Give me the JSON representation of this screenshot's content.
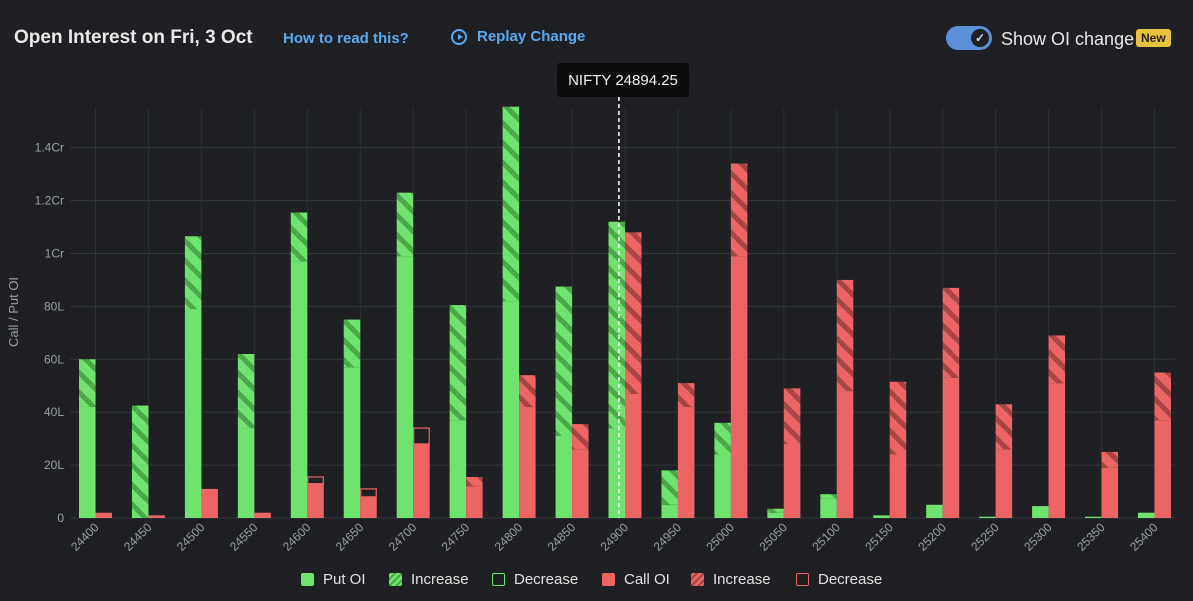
{
  "header": {
    "title": "Open Interest on Fri, 3 Oct",
    "how_to_read": "How to read this?",
    "replay": "Replay Change",
    "toggle_label": "Show OI change",
    "toggle_on": true,
    "badge": "New"
  },
  "tooltip": "NIFTY 24894.25",
  "colors": {
    "background": "#1e2023",
    "put": "#6ee46e",
    "call": "#ec6464",
    "grid": "#34373b",
    "link": "#5aa9f0",
    "badge": "#e8c23a"
  },
  "legend": [
    {
      "label": "Put OI",
      "kind": "solid",
      "side": "put"
    },
    {
      "label": "Increase",
      "kind": "hatch",
      "side": "put"
    },
    {
      "label": "Decrease",
      "kind": "outline",
      "side": "put"
    },
    {
      "label": "Call OI",
      "kind": "solid",
      "side": "call"
    },
    {
      "label": "Increase",
      "kind": "hatch",
      "side": "call"
    },
    {
      "label": "Decrease",
      "kind": "outline",
      "side": "call"
    }
  ],
  "chart_data": {
    "type": "bar",
    "title": "Open Interest on Fri, 3 Oct",
    "xlabel": "",
    "ylabel": "Call / Put OI",
    "ylim": [
      0,
      155
    ],
    "unit": "Lakh",
    "yticks": [
      {
        "value": 0,
        "label": "0"
      },
      {
        "value": 20,
        "label": "20L"
      },
      {
        "value": 40,
        "label": "40L"
      },
      {
        "value": 60,
        "label": "60L"
      },
      {
        "value": 80,
        "label": "80L"
      },
      {
        "value": 100,
        "label": "1Cr"
      },
      {
        "value": 120,
        "label": "1.2Cr"
      },
      {
        "value": 140,
        "label": "1.4Cr"
      }
    ],
    "categories": [
      "24400",
      "24450",
      "24500",
      "24550",
      "24600",
      "24650",
      "24700",
      "24750",
      "24800",
      "24850",
      "24900",
      "24950",
      "25000",
      "25050",
      "25100",
      "25150",
      "25200",
      "25250",
      "25300",
      "25350",
      "25400"
    ],
    "spot": {
      "label": "NIFTY 24894.25",
      "value": 24894.25
    },
    "series": [
      {
        "name": "Put OI",
        "base": [
          42,
          0,
          79,
          34,
          97,
          57,
          99,
          37,
          82,
          31,
          34,
          5,
          24,
          2,
          7.5,
          1,
          5,
          0.5,
          4.5,
          0.5,
          2
        ],
        "increase": [
          18,
          42.5,
          27.5,
          28,
          18.5,
          18,
          24,
          43.5,
          73.5,
          56.5,
          78,
          13,
          12,
          1.5,
          1.5,
          0,
          0,
          0,
          0,
          0,
          0
        ],
        "decrease": [
          0,
          0,
          0,
          0,
          0,
          0,
          0,
          0,
          0,
          0,
          0,
          0,
          0,
          0,
          0,
          0,
          0,
          0,
          0,
          0,
          0
        ]
      },
      {
        "name": "Call OI",
        "base": [
          2,
          1,
          11,
          2,
          13,
          8,
          28,
          12,
          42,
          26,
          47,
          42,
          99,
          28,
          48,
          24,
          53,
          26,
          51,
          19,
          37
        ],
        "increase": [
          0,
          0,
          0,
          0,
          0,
          0,
          0,
          3.5,
          12,
          9.5,
          61,
          9,
          35,
          21,
          42,
          27.5,
          34,
          17,
          18,
          6,
          18
        ],
        "decrease": [
          0,
          0,
          0,
          0,
          2.5,
          3,
          6,
          0,
          0,
          0,
          0,
          0,
          0,
          0,
          0,
          0,
          0,
          0,
          0,
          0,
          0
        ]
      }
    ]
  }
}
